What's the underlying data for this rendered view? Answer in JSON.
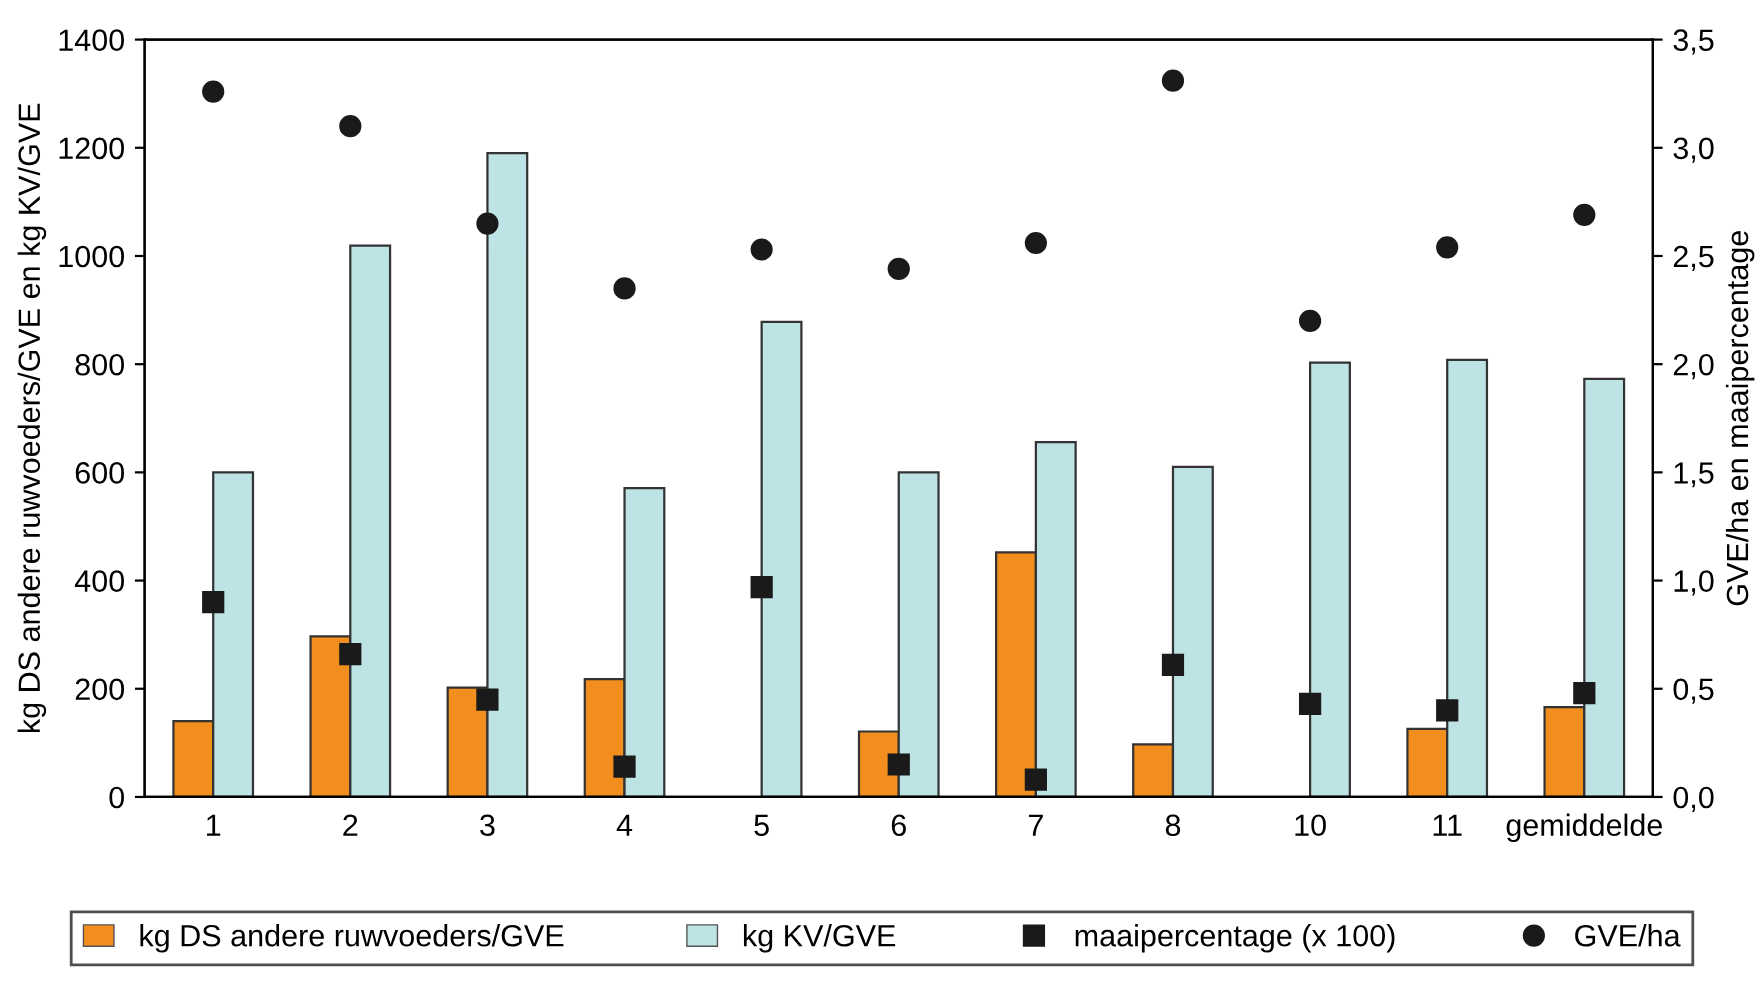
{
  "chart_data": {
    "type": "bar",
    "ylabel": "kg DS andere ruwvoeders/GVE en kg KV/GVE",
    "y2label": "GVE/ha en maaipercentage",
    "categories": [
      "1",
      "2",
      "3",
      "4",
      "5",
      "6",
      "7",
      "8",
      "10",
      "11",
      "gemiddelde"
    ],
    "series": [
      {
        "name": "kg DS andere ruwvoeders/GVE",
        "color": "#f28e1e",
        "values": [
          140,
          297,
          202,
          218,
          null,
          121,
          452,
          97,
          null,
          126,
          166
        ]
      },
      {
        "name": "kg KV/GVE",
        "color": "#bde3e5",
        "values": [
          600,
          1019,
          1190,
          571,
          878,
          600,
          656,
          610,
          803,
          808,
          773
        ]
      },
      {
        "name": "maaipercentage (x 100)",
        "type": "scatter",
        "marker": "square",
        "axis": "y2",
        "color": "#1a1a1a",
        "values": [
          0.9,
          0.66,
          0.45,
          0.14,
          0.97,
          0.15,
          0.08,
          0.61,
          0.43,
          0.4,
          0.48
        ]
      },
      {
        "name": "GVE/ha",
        "type": "scatter",
        "marker": "circle",
        "axis": "y2",
        "color": "#1a1a1a",
        "values": [
          3.26,
          3.1,
          2.65,
          2.35,
          2.53,
          2.44,
          2.56,
          3.31,
          2.2,
          2.54,
          2.69
        ]
      }
    ],
    "ylim": [
      0,
      1400
    ],
    "yticks": [
      0,
      200,
      400,
      600,
      800,
      1000,
      1200,
      1400
    ],
    "y2lim": [
      0,
      3.5
    ],
    "y2ticks": [
      {
        "value": 0,
        "label": "0,0"
      },
      {
        "value": 0.5,
        "label": "0,5"
      },
      {
        "value": 1,
        "label": "1,0"
      },
      {
        "value": 1.5,
        "label": "1,5"
      },
      {
        "value": 2,
        "label": "2,0"
      },
      {
        "value": 2.5,
        "label": "2,5"
      },
      {
        "value": 3,
        "label": "3,0"
      },
      {
        "value": 3.5,
        "label": "3,5"
      }
    ],
    "grid": false,
    "legend": "bottom"
  }
}
